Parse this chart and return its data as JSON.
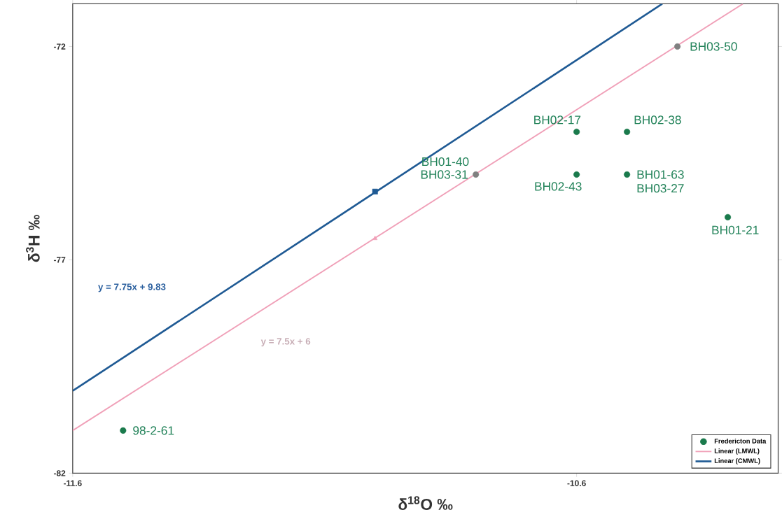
{
  "chart_data": {
    "type": "scatter",
    "xlabel": "δ$^{18}$O ‰",
    "ylabel": "δ$^{3}$H ‰",
    "xlim": [
      -11.6,
      -10.2
    ],
    "ylim": [
      -82,
      -71
    ],
    "xticks": [
      -11.6,
      -10.6
    ],
    "yticks": [
      -82,
      -77,
      -72
    ],
    "grid": false,
    "legend": "bottom right",
    "series": [
      {
        "name": "Fredericton Data",
        "type": "scatter",
        "marker": "circle",
        "color": "#1a7a4c",
        "x": [
          -10.6,
          -10.5,
          -10.6,
          -10.5,
          -10.3,
          -11.5
        ],
        "values": [
          -74,
          -74,
          -75,
          -75,
          -76,
          -81
        ]
      },
      {
        "name": "Linear (LMWL)",
        "type": "line",
        "marker": "none",
        "color": "#f0a0b8",
        "x": [
          -11.6,
          -10.27
        ],
        "values": [
          -81,
          -71
        ]
      },
      {
        "name": "Linear (CMWL)",
        "type": "line",
        "marker": "none",
        "color": "#1f5a94",
        "x": [
          -11.6,
          -10.43
        ],
        "values": [
          -80.07,
          -71
        ]
      },
      {
        "marker": "circle",
        "color": "#808080",
        "x": [
          -10.8,
          -10.4
        ],
        "values": [
          -75,
          -72
        ]
      },
      {
        "marker": "triangle",
        "color": "#f0a0b8",
        "x": [
          -11.0
        ],
        "values": [
          -76.5
        ]
      },
      {
        "marker": "square",
        "color": "#1f5a94",
        "x": [
          -11.0
        ],
        "values": [
          -75.4
        ]
      }
    ],
    "annotations": [
      {
        "text": "BH03-50",
        "x": -10.4,
        "y": -72
      },
      {
        "text": "BH02-17",
        "x": -10.6,
        "y": -74
      },
      {
        "text": "BH02-38",
        "x": -10.5,
        "y": -74
      },
      {
        "text": "BH01-40",
        "x": -10.8,
        "y": -75
      },
      {
        "text": "BH03-31",
        "x": -10.8,
        "y": -75
      },
      {
        "text": "BH02-43",
        "x": -10.6,
        "y": -75
      },
      {
        "text": "BH01-63",
        "x": -10.5,
        "y": -75
      },
      {
        "text": "BH03-27",
        "x": -10.5,
        "y": -75
      },
      {
        "text": "BH01-21",
        "x": -10.3,
        "y": -76
      },
      {
        "text": "98-2-61",
        "x": -11.5,
        "y": -81
      },
      "y = 7.75x + 9.83",
      "y = 7.5x + 6"
    ]
  }
}
